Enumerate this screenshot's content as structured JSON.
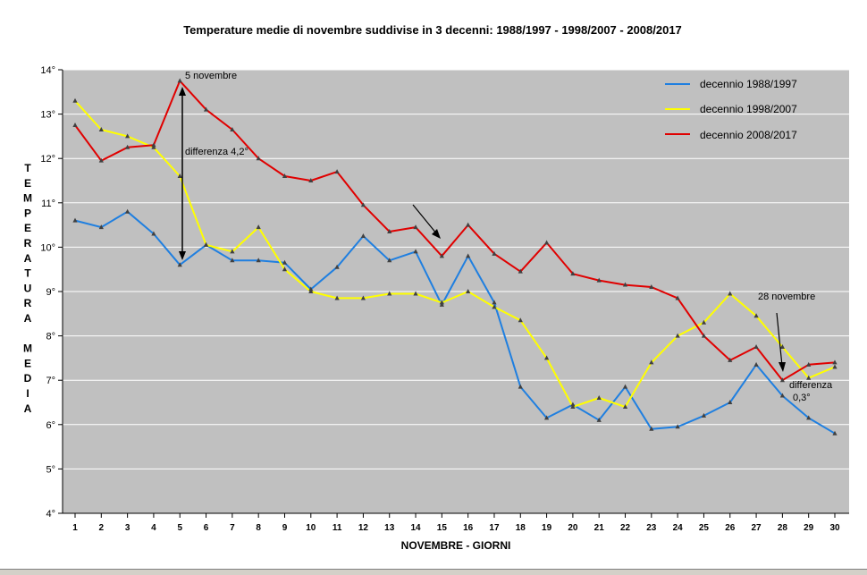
{
  "chart_data": {
    "type": "line",
    "title": "Temperature medie di novembre suddivise in 3 decenni: 1988/1997 - 1998/2007 - 2008/2017",
    "xlabel": "NOVEMBRE - GIORNI",
    "ylabel": "TEMPERATURA MEDIA",
    "ylabel_letters": [
      "T",
      "E",
      "M",
      "P",
      "E",
      "R",
      "A",
      "T",
      "U",
      "R",
      "A",
      "",
      "M",
      "E",
      "D",
      "I",
      "A"
    ],
    "x": [
      1,
      2,
      3,
      4,
      5,
      6,
      7,
      8,
      9,
      10,
      11,
      12,
      13,
      14,
      15,
      16,
      17,
      18,
      19,
      20,
      21,
      22,
      23,
      24,
      25,
      26,
      27,
      28,
      29,
      30
    ],
    "y_ticks": [
      "4°",
      "5°",
      "6°",
      "7°",
      "8°",
      "9°",
      "10°",
      "11°",
      "12°",
      "13°",
      "14°"
    ],
    "ylim": [
      4,
      14
    ],
    "grid": true,
    "legend_position": "top-right",
    "series": [
      {
        "name": "decennio 1988/1997",
        "color": "#1f7fe0",
        "values": [
          10.6,
          10.45,
          10.8,
          10.3,
          9.6,
          10.05,
          9.7,
          9.7,
          9.65,
          9.05,
          9.55,
          10.25,
          9.7,
          9.9,
          8.7,
          9.8,
          8.75,
          6.85,
          6.15,
          6.45,
          6.1,
          6.85,
          5.9,
          5.95,
          6.2,
          6.5,
          7.35,
          6.65,
          6.15,
          5.8
        ]
      },
      {
        "name": "decennio 1998/2007",
        "color": "#ffff00",
        "values": [
          13.3,
          12.65,
          12.5,
          12.25,
          11.6,
          10.05,
          9.9,
          10.45,
          9.5,
          9.0,
          8.85,
          8.85,
          8.95,
          8.95,
          8.75,
          9.0,
          8.65,
          8.35,
          7.5,
          6.4,
          6.6,
          6.4,
          7.4,
          8.0,
          8.3,
          8.95,
          8.45,
          7.75,
          7.05,
          7.3
        ]
      },
      {
        "name": "decennio 2008/2017",
        "color": "#e00000",
        "values": [
          12.75,
          11.95,
          12.25,
          12.3,
          13.75,
          13.1,
          12.65,
          12.0,
          11.6,
          11.5,
          11.7,
          10.95,
          10.35,
          10.45,
          9.8,
          10.5,
          9.85,
          9.45,
          10.1,
          9.4,
          9.25,
          9.15,
          9.1,
          8.85,
          8.0,
          7.45,
          7.75,
          7.0,
          7.35,
          7.4
        ]
      }
    ],
    "annotations": {
      "day5_label": "5 novembre",
      "diff42_label": "differenza 4,2°",
      "day28_label": "28 novembre",
      "diff03_label1": "differenza",
      "diff03_label2": "0,3°"
    }
  }
}
